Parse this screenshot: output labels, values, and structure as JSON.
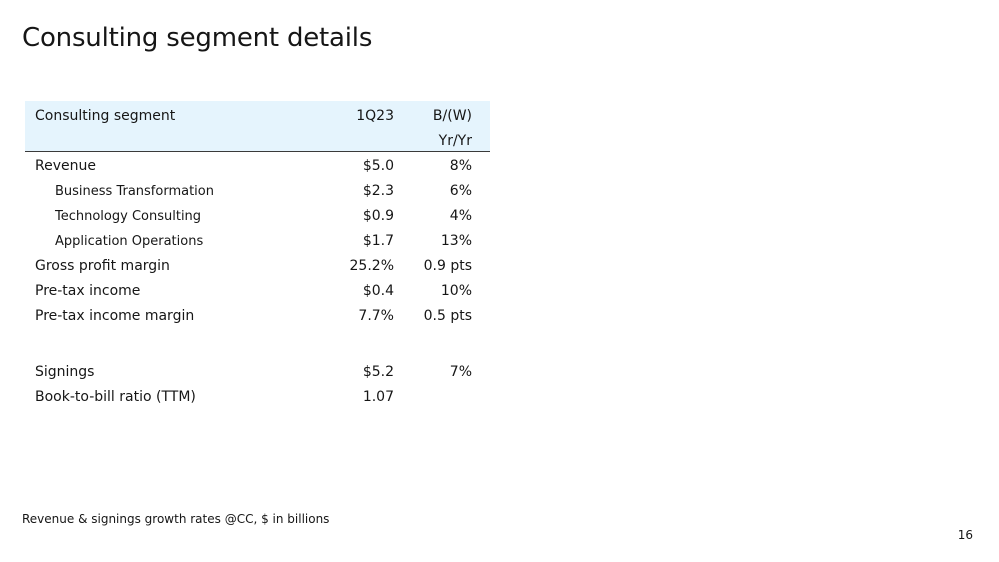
{
  "title": "Consulting segment details",
  "table": {
    "header": {
      "label": "Consulting segment",
      "col1": "1Q23",
      "col2_line1": "B/(W)",
      "col2_line2": "Yr/Yr"
    },
    "rows": [
      {
        "label": "Revenue",
        "q": "$5.0",
        "yy": "8%"
      },
      {
        "label": "Business Transformation",
        "q": "$2.3",
        "yy": "6%"
      },
      {
        "label": "Technology Consulting",
        "q": "$0.9",
        "yy": "4%"
      },
      {
        "label": "Application Operations",
        "q": "$1.7",
        "yy": "13%"
      },
      {
        "label": "Gross profit margin",
        "q": "25.2%",
        "yy": "0.9 pts"
      },
      {
        "label": "Pre-tax income",
        "q": "$0.4",
        "yy": "10%"
      },
      {
        "label": "Pre-tax income margin",
        "q": "7.7%",
        "yy": "0.5 pts"
      },
      {
        "label": "Signings",
        "q": "$5.2",
        "yy": "7%"
      },
      {
        "label": "Book-to-bill ratio (TTM)",
        "q": "1.07",
        "yy": ""
      }
    ]
  },
  "footnote": "Revenue & signings growth rates @CC, $ in billions",
  "page_number": "16"
}
